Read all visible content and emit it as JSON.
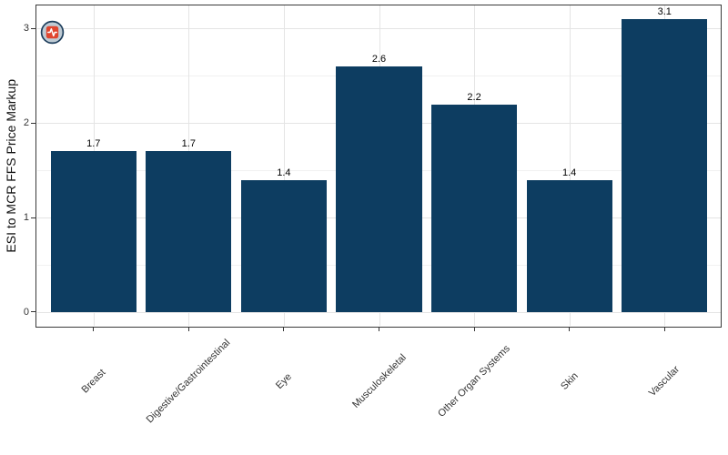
{
  "chart_data": {
    "type": "bar",
    "title": "",
    "xlabel": "",
    "ylabel": "ESI to MCR FFS Price Markup",
    "categories": [
      "Breast",
      "Digestive/Gastrointestinal",
      "Eye",
      "Musculoskeletal",
      "Other Organ Systems",
      "Skin",
      "Vascular"
    ],
    "values": [
      1.7,
      1.7,
      1.4,
      2.6,
      2.2,
      1.4,
      3.1
    ],
    "value_labels": [
      "1.7",
      "1.7",
      "1.4",
      "2.6",
      "2.2",
      "1.4",
      "3.1"
    ],
    "y_ticks": [
      0,
      1,
      2,
      3
    ],
    "y_tick_labels": [
      "0",
      "1",
      "2",
      "3"
    ],
    "y_minor_ticks": [
      0.5,
      1.5,
      2.5
    ],
    "ylim": [
      -0.155,
      3.255
    ],
    "bar_width_fraction": 0.9,
    "grid": "horizontal major+minor, vertical major at category centers",
    "legend_position": "none",
    "x_tick_label_angle": -45,
    "colors": {
      "bar_fill": "#0d3d61",
      "panel_border": "#3a3a3a",
      "grid_major": "#e4e4e4",
      "grid_minor": "#f1f1f1",
      "axis_text": "#333333",
      "axis_title": "#111111",
      "value_label": "#000000",
      "tick_mark": "#333333"
    }
  },
  "overlay_icon": {
    "name": "health-pulse-cursor-badge",
    "circle_fill": "#bfcbd4",
    "circle_ring": "#1d3e5c",
    "square_fill": "#e0462f",
    "pulse_color": "#ffffff"
  }
}
